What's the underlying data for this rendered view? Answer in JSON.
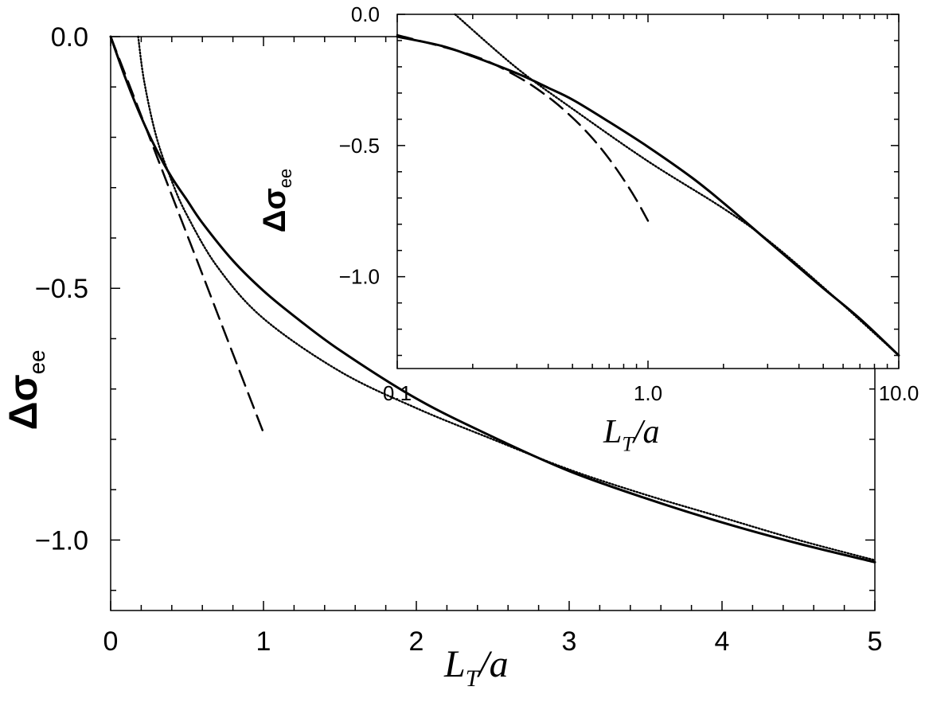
{
  "chart_data": [
    {
      "type": "line",
      "xlabel": {
        "main": "L",
        "sub": "T",
        "rest": "/a"
      },
      "ylabel": {
        "main": "Δσ",
        "sub": "ee"
      },
      "xlim": [
        0,
        5
      ],
      "ylim": [
        -1.14,
        0
      ],
      "xticks": [
        0,
        1,
        2,
        3,
        4,
        5
      ],
      "xtick_labels": [
        "0",
        "1",
        "2",
        "3",
        "4",
        "5"
      ],
      "yticks": [
        0,
        -0.5,
        -1.0
      ],
      "ytick_labels": [
        "0.0",
        "−0.5",
        "−1.0"
      ],
      "series": [
        {
          "style": "solid",
          "x": [
            0,
            0.1,
            0.2,
            0.3,
            0.4,
            0.5,
            0.6,
            0.8,
            1.0,
            1.2,
            1.5,
            2.0,
            2.5,
            3.0,
            3.5,
            4.0,
            4.5,
            5.0
          ],
          "y": [
            0,
            -0.085,
            -0.16,
            -0.225,
            -0.28,
            -0.325,
            -0.37,
            -0.445,
            -0.505,
            -0.555,
            -0.623,
            -0.719,
            -0.795,
            -0.863,
            -0.917,
            -0.965,
            -1.007,
            -1.044
          ]
        },
        {
          "style": "dashed",
          "x": [
            0,
            0.2,
            0.4,
            0.6,
            0.8,
            1.0
          ],
          "y": [
            0,
            -0.157,
            -0.315,
            -0.472,
            -0.63,
            -0.787
          ]
        },
        {
          "style": "dotted",
          "x": [
            0.18,
            0.22,
            0.3,
            0.4,
            0.5,
            0.7,
            1.0,
            1.5,
            2.0,
            2.5,
            3.0,
            3.5,
            4.0,
            4.5,
            5.0
          ],
          "y": [
            0,
            -0.09,
            -0.2,
            -0.287,
            -0.355,
            -0.458,
            -0.56,
            -0.665,
            -0.738,
            -0.8,
            -0.86,
            -0.91,
            -0.955,
            -1.0,
            -1.04
          ]
        }
      ]
    },
    {
      "type": "line",
      "xscale": "log",
      "xlabel": {
        "main": "L",
        "sub": "T",
        "rest": "/a"
      },
      "ylabel": {
        "main": "Δσ",
        "sub": "ee"
      },
      "xlim": [
        0.1,
        10.0
      ],
      "ylim": [
        -1.35,
        0
      ],
      "xticks": [
        0.1,
        1.0,
        10.0
      ],
      "xtick_labels": [
        "0.1",
        "1.0",
        "10.0"
      ],
      "yticks": [
        0,
        -0.5,
        -1.0
      ],
      "ytick_labels": [
        "0.0",
        "−0.5",
        "−1.0"
      ],
      "series": [
        {
          "style": "solid",
          "x": [
            0.1,
            0.15,
            0.2,
            0.3,
            0.4,
            0.5,
            0.7,
            1.0,
            1.5,
            2.0,
            3.0,
            4.0,
            5.0,
            7.0,
            10.0
          ],
          "y": [
            -0.085,
            -0.12,
            -0.16,
            -0.225,
            -0.28,
            -0.325,
            -0.41,
            -0.505,
            -0.623,
            -0.719,
            -0.863,
            -0.965,
            -1.044,
            -1.16,
            -1.3
          ]
        },
        {
          "style": "dashed",
          "x": [
            0.1,
            0.2,
            0.3,
            0.4,
            0.5,
            0.6,
            0.7,
            0.8,
            0.9,
            1.0
          ],
          "y": [
            -0.079,
            -0.157,
            -0.236,
            -0.315,
            -0.394,
            -0.472,
            -0.551,
            -0.63,
            -0.708,
            -0.787
          ]
        },
        {
          "style": "dotted",
          "x": [
            0.17,
            0.3,
            0.5,
            1.0,
            2.0,
            3.0,
            5.0,
            10.0
          ],
          "y": [
            0,
            -0.205,
            -0.36,
            -0.56,
            -0.74,
            -0.86,
            -1.04,
            -1.3
          ]
        }
      ]
    }
  ]
}
